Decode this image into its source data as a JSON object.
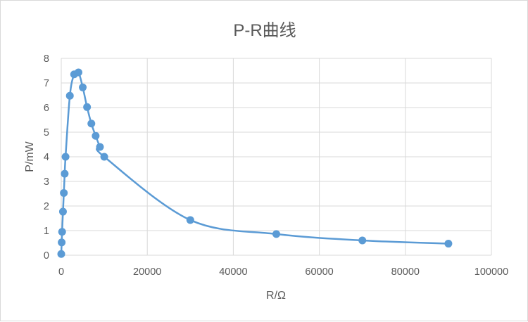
{
  "chart_data": {
    "type": "scatter",
    "title": "P-R曲线",
    "xlabel": "R/Ω",
    "ylabel": "P/mW",
    "xlim": [
      0,
      100000
    ],
    "ylim": [
      0,
      8
    ],
    "x_ticks": [
      0,
      20000,
      40000,
      60000,
      80000,
      100000
    ],
    "y_ticks": [
      0,
      1,
      2,
      3,
      4,
      5,
      6,
      7,
      8
    ],
    "x_tick_labels": [
      "0",
      "20000",
      "40000",
      "60000",
      "80000",
      "100000"
    ],
    "y_tick_labels": [
      "0",
      "1",
      "2",
      "3",
      "4",
      "5",
      "6",
      "7",
      "8"
    ],
    "grid": true,
    "smooth_line": true,
    "legend": "none",
    "color": "#5b9bd5",
    "series": [
      {
        "x": [
          0,
          100,
          200,
          400,
          600,
          800,
          1000,
          2000,
          3000,
          4000,
          5000,
          6000,
          7000,
          8000,
          9000,
          10000,
          30000,
          50000,
          70000,
          90000
        ],
        "y": [
          0.05,
          0.52,
          0.95,
          1.77,
          2.53,
          3.31,
          4.0,
          6.48,
          7.35,
          7.43,
          6.82,
          6.02,
          5.35,
          4.85,
          4.4,
          4.0,
          1.43,
          0.86,
          0.6,
          0.47
        ]
      }
    ]
  }
}
